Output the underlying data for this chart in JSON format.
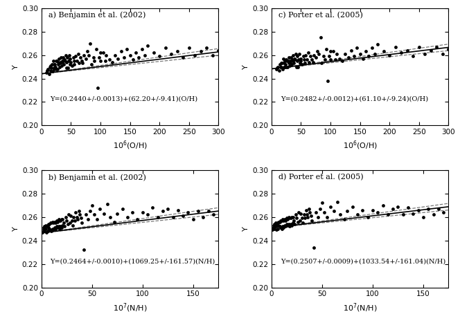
{
  "panels": [
    {
      "label": "a) Benjamin et al. (2002)",
      "xlabel": "10$^6$(O/H)",
      "slope_divisor": 1000000.0,
      "xlim": [
        0,
        300
      ],
      "ylim": [
        0.2,
        0.3
      ],
      "yticks": [
        0.2,
        0.22,
        0.24,
        0.26,
        0.28,
        0.3
      ],
      "xticks": [
        0,
        50,
        100,
        150,
        200,
        250,
        300
      ],
      "equation": "Y=(0.2440+/-0.0013)+(62.20+/-9.41)(O/H)",
      "intercept": 0.244,
      "slope": 62.2,
      "slope_err": 9.41,
      "x_data": [
        8,
        10,
        11,
        13,
        14,
        15,
        16,
        17,
        18,
        19,
        20,
        21,
        21,
        22,
        23,
        24,
        25,
        25,
        26,
        27,
        28,
        29,
        30,
        31,
        32,
        32,
        33,
        34,
        35,
        36,
        37,
        38,
        39,
        40,
        41,
        42,
        43,
        44,
        45,
        46,
        47,
        48,
        49,
        50,
        52,
        54,
        55,
        56,
        58,
        60,
        62,
        64,
        66,
        68,
        70,
        72,
        75,
        78,
        80,
        83,
        85,
        88,
        90,
        93,
        95,
        98,
        100,
        100,
        105,
        108,
        110,
        115,
        120,
        125,
        130,
        135,
        140,
        145,
        150,
        155,
        160,
        165,
        170,
        175,
        180,
        190,
        200,
        210,
        220,
        230,
        240,
        250,
        260,
        270,
        280,
        290,
        300
      ],
      "y_data": [
        0.245,
        0.247,
        0.248,
        0.244,
        0.25,
        0.247,
        0.251,
        0.249,
        0.252,
        0.246,
        0.255,
        0.248,
        0.252,
        0.249,
        0.252,
        0.25,
        0.255,
        0.248,
        0.255,
        0.248,
        0.254,
        0.252,
        0.257,
        0.25,
        0.254,
        0.253,
        0.258,
        0.251,
        0.255,
        0.254,
        0.258,
        0.252,
        0.256,
        0.255,
        0.26,
        0.249,
        0.254,
        0.258,
        0.249,
        0.255,
        0.26,
        0.252,
        0.257,
        0.254,
        0.251,
        0.258,
        0.255,
        0.252,
        0.259,
        0.255,
        0.261,
        0.253,
        0.258,
        0.255,
        0.253,
        0.26,
        0.257,
        0.263,
        0.26,
        0.27,
        0.252,
        0.258,
        0.255,
        0.265,
        0.232,
        0.258,
        0.262,
        0.255,
        0.262,
        0.255,
        0.26,
        0.256,
        0.254,
        0.26,
        0.257,
        0.263,
        0.258,
        0.265,
        0.26,
        0.256,
        0.262,
        0.258,
        0.265,
        0.26,
        0.268,
        0.262,
        0.259,
        0.266,
        0.261,
        0.263,
        0.258,
        0.266,
        0.26,
        0.263,
        0.266,
        0.26,
        0.264
      ]
    },
    {
      "label": "c) Porter et al. (2005)",
      "xlabel": "10$^6$(O/H)",
      "slope_divisor": 1000000.0,
      "xlim": [
        0,
        300
      ],
      "ylim": [
        0.2,
        0.3
      ],
      "yticks": [
        0.2,
        0.22,
        0.24,
        0.26,
        0.28,
        0.3
      ],
      "xticks": [
        0,
        50,
        100,
        150,
        200,
        250,
        300
      ],
      "equation": "Y=(0.2482+/-0.0012)+(61.10+/-9.24)(O/H)",
      "intercept": 0.2482,
      "slope": 61.1,
      "slope_err": 9.24,
      "x_data": [
        8,
        10,
        11,
        13,
        14,
        15,
        16,
        17,
        18,
        19,
        20,
        21,
        21,
        22,
        23,
        24,
        25,
        25,
        26,
        27,
        28,
        29,
        30,
        31,
        32,
        32,
        33,
        34,
        35,
        36,
        37,
        38,
        39,
        40,
        41,
        42,
        43,
        44,
        45,
        46,
        47,
        48,
        49,
        50,
        52,
        54,
        55,
        56,
        58,
        60,
        62,
        64,
        66,
        68,
        70,
        72,
        75,
        78,
        80,
        83,
        85,
        88,
        90,
        93,
        95,
        98,
        100,
        100,
        105,
        108,
        110,
        115,
        120,
        125,
        130,
        135,
        140,
        145,
        150,
        155,
        160,
        165,
        170,
        175,
        180,
        190,
        200,
        210,
        220,
        230,
        240,
        250,
        260,
        270,
        280,
        290,
        300
      ],
      "y_data": [
        0.248,
        0.249,
        0.25,
        0.247,
        0.252,
        0.25,
        0.253,
        0.25,
        0.253,
        0.248,
        0.257,
        0.25,
        0.253,
        0.25,
        0.255,
        0.252,
        0.256,
        0.25,
        0.255,
        0.25,
        0.255,
        0.253,
        0.258,
        0.251,
        0.255,
        0.254,
        0.258,
        0.252,
        0.256,
        0.255,
        0.26,
        0.253,
        0.257,
        0.256,
        0.261,
        0.25,
        0.255,
        0.259,
        0.25,
        0.256,
        0.261,
        0.253,
        0.257,
        0.255,
        0.252,
        0.259,
        0.256,
        0.253,
        0.26,
        0.256,
        0.262,
        0.254,
        0.259,
        0.256,
        0.254,
        0.26,
        0.258,
        0.263,
        0.261,
        0.275,
        0.253,
        0.259,
        0.256,
        0.265,
        0.238,
        0.259,
        0.263,
        0.256,
        0.263,
        0.256,
        0.261,
        0.257,
        0.255,
        0.261,
        0.258,
        0.264,
        0.259,
        0.266,
        0.261,
        0.257,
        0.263,
        0.259,
        0.266,
        0.261,
        0.269,
        0.263,
        0.26,
        0.267,
        0.262,
        0.264,
        0.259,
        0.267,
        0.261,
        0.264,
        0.267,
        0.261,
        0.265
      ]
    },
    {
      "label": "b) Benjamin et al. (2002)",
      "xlabel": "10$^7$(N/H)",
      "slope_divisor": 10000000.0,
      "xlim": [
        0,
        175
      ],
      "ylim": [
        0.2,
        0.3
      ],
      "yticks": [
        0.2,
        0.22,
        0.24,
        0.26,
        0.28,
        0.3
      ],
      "xticks": [
        0,
        50,
        100,
        150
      ],
      "equation": "Y=(0.2464+/-0.0010)+(1069.25+/-161.57)(N/H)",
      "intercept": 0.2464,
      "slope": 1069.25,
      "slope_err": 161.57,
      "x_data": [
        1,
        2,
        2,
        3,
        3,
        4,
        4,
        5,
        5,
        6,
        6,
        7,
        7,
        8,
        8,
        9,
        9,
        10,
        10,
        11,
        11,
        12,
        12,
        13,
        13,
        14,
        14,
        15,
        15,
        16,
        16,
        17,
        17,
        18,
        18,
        19,
        19,
        20,
        20,
        21,
        21,
        22,
        23,
        24,
        25,
        26,
        27,
        28,
        29,
        30,
        31,
        32,
        33,
        34,
        35,
        36,
        37,
        38,
        39,
        40,
        42,
        44,
        46,
        48,
        50,
        52,
        55,
        58,
        62,
        65,
        68,
        72,
        75,
        80,
        85,
        90,
        95,
        100,
        105,
        110,
        115,
        120,
        125,
        130,
        135,
        140,
        145,
        150,
        155,
        160,
        165,
        170
      ],
      "y_data": [
        0.247,
        0.249,
        0.251,
        0.248,
        0.252,
        0.25,
        0.253,
        0.247,
        0.252,
        0.248,
        0.253,
        0.251,
        0.254,
        0.25,
        0.254,
        0.249,
        0.255,
        0.248,
        0.255,
        0.25,
        0.256,
        0.249,
        0.255,
        0.251,
        0.256,
        0.25,
        0.255,
        0.252,
        0.257,
        0.251,
        0.256,
        0.252,
        0.258,
        0.25,
        0.257,
        0.252,
        0.257,
        0.251,
        0.258,
        0.253,
        0.258,
        0.255,
        0.252,
        0.26,
        0.257,
        0.254,
        0.262,
        0.255,
        0.261,
        0.257,
        0.253,
        0.26,
        0.257,
        0.264,
        0.26,
        0.258,
        0.265,
        0.262,
        0.259,
        0.255,
        0.232,
        0.262,
        0.258,
        0.265,
        0.27,
        0.262,
        0.258,
        0.267,
        0.263,
        0.271,
        0.26,
        0.256,
        0.263,
        0.267,
        0.26,
        0.264,
        0.258,
        0.264,
        0.262,
        0.268,
        0.26,
        0.265,
        0.267,
        0.26,
        0.266,
        0.261,
        0.264,
        0.258,
        0.265,
        0.26,
        0.265,
        0.262
      ]
    },
    {
      "label": "d) Porter et al. (2005)",
      "xlabel": "10$^7$(N/H)",
      "slope_divisor": 10000000.0,
      "xlim": [
        0,
        175
      ],
      "ylim": [
        0.2,
        0.3
      ],
      "yticks": [
        0.2,
        0.22,
        0.24,
        0.26,
        0.28,
        0.3
      ],
      "xticks": [
        0,
        50,
        100,
        150
      ],
      "equation": "Y=(0.2507+/-0.0009)+(1033.54+/-161.04)(N/H)",
      "intercept": 0.2507,
      "slope": 1033.54,
      "slope_err": 161.04,
      "x_data": [
        1,
        2,
        2,
        3,
        3,
        4,
        4,
        5,
        5,
        6,
        6,
        7,
        7,
        8,
        8,
        9,
        9,
        10,
        10,
        11,
        11,
        12,
        12,
        13,
        13,
        14,
        14,
        15,
        15,
        16,
        16,
        17,
        17,
        18,
        18,
        19,
        19,
        20,
        20,
        21,
        21,
        22,
        23,
        24,
        25,
        26,
        27,
        28,
        29,
        30,
        31,
        32,
        33,
        34,
        35,
        36,
        37,
        38,
        39,
        40,
        42,
        44,
        46,
        48,
        50,
        52,
        55,
        58,
        62,
        65,
        68,
        72,
        75,
        80,
        85,
        90,
        95,
        100,
        105,
        110,
        115,
        120,
        125,
        130,
        135,
        140,
        145,
        150,
        155,
        160,
        165,
        170
      ],
      "y_data": [
        0.249,
        0.251,
        0.253,
        0.25,
        0.254,
        0.252,
        0.255,
        0.249,
        0.254,
        0.25,
        0.255,
        0.253,
        0.256,
        0.252,
        0.256,
        0.251,
        0.257,
        0.25,
        0.257,
        0.252,
        0.258,
        0.251,
        0.257,
        0.253,
        0.258,
        0.252,
        0.257,
        0.254,
        0.259,
        0.253,
        0.258,
        0.254,
        0.26,
        0.252,
        0.259,
        0.254,
        0.259,
        0.253,
        0.26,
        0.255,
        0.26,
        0.257,
        0.254,
        0.262,
        0.259,
        0.256,
        0.264,
        0.257,
        0.263,
        0.259,
        0.255,
        0.262,
        0.259,
        0.266,
        0.262,
        0.26,
        0.267,
        0.264,
        0.261,
        0.257,
        0.234,
        0.264,
        0.26,
        0.267,
        0.272,
        0.264,
        0.26,
        0.269,
        0.265,
        0.273,
        0.262,
        0.258,
        0.265,
        0.269,
        0.262,
        0.266,
        0.26,
        0.266,
        0.264,
        0.27,
        0.262,
        0.267,
        0.269,
        0.262,
        0.268,
        0.263,
        0.266,
        0.26,
        0.267,
        0.262,
        0.267,
        0.264
      ]
    }
  ],
  "dot_color": "#000000",
  "dot_size": 12,
  "line_color": "#000000",
  "dashed_color": "#777777",
  "eq_fontsize": 7,
  "label_fontsize": 8,
  "tick_fontsize": 7.5,
  "ylabel": "Y"
}
